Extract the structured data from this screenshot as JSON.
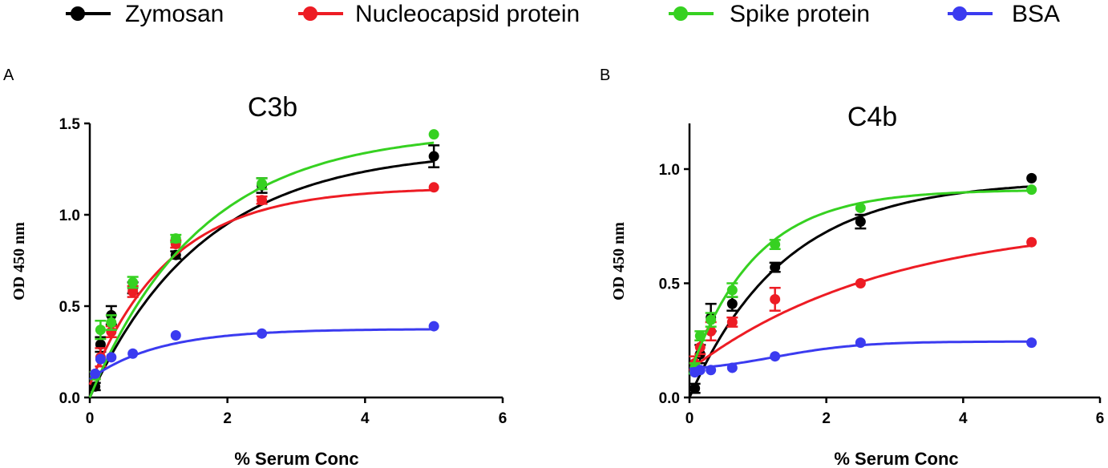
{
  "legend": [
    {
      "name": "Zymosan",
      "color": "#000000"
    },
    {
      "name": "Nucleocapsid protein",
      "color": "#ed1c24"
    },
    {
      "name": "Spike protein",
      "color": "#36d121"
    },
    {
      "name": "BSA",
      "color": "#3b3bf0"
    }
  ],
  "chart_data": [
    {
      "type": "scatter",
      "panel": "A",
      "title": "C3b",
      "xlabel": "% Serum Conc",
      "ylabel": "OD 450 nm",
      "xlim": [
        0,
        6
      ],
      "ylim": [
        0,
        1.5
      ],
      "xticks": [
        0,
        2,
        4,
        6
      ],
      "yticks": [
        0.0,
        0.5,
        1.0,
        1.5
      ],
      "x": [
        0.078,
        0.156,
        0.3125,
        0.625,
        1.25,
        2.5,
        5.0
      ],
      "series": [
        {
          "name": "Zymosan",
          "color": "#000000",
          "values": [
            0.06,
            0.29,
            0.45,
            0.6,
            0.78,
            1.16,
            1.32
          ],
          "err": [
            0.02,
            0.04,
            0.05,
            0.03,
            0.02,
            0.04,
            0.06
          ],
          "fit": {
            "base": 0.0,
            "top": 1.36,
            "k": 0.6
          }
        },
        {
          "name": "Nucleocapsid protein",
          "color": "#ed1c24",
          "values": [
            0.12,
            0.22,
            0.36,
            0.58,
            0.84,
            1.08,
            1.15
          ],
          "err": [
            0.02,
            0.05,
            0.03,
            0.03,
            0.02,
            0.02,
            0.01
          ],
          "fit": {
            "base": 0.07,
            "top": 1.15,
            "k": 0.86
          }
        },
        {
          "name": "Spike protein",
          "color": "#36d121",
          "values": [
            0.12,
            0.37,
            0.41,
            0.63,
            0.87,
            1.17,
            1.44
          ],
          "err": [
            0.02,
            0.05,
            0.04,
            0.03,
            0.02,
            0.03,
            0.01
          ],
          "fit": {
            "base": 0.0,
            "top": 1.46,
            "k": 0.62
          }
        },
        {
          "name": "BSA",
          "color": "#3b3bf0",
          "values": [
            0.13,
            0.21,
            0.22,
            0.24,
            0.34,
            0.35,
            0.39
          ],
          "err": [
            0.01,
            0.01,
            0.01,
            0.01,
            0.01,
            0.01,
            0.01
          ],
          "fit": {
            "base": 0.1,
            "top": 0.375,
            "k": 1.0
          }
        }
      ]
    },
    {
      "type": "scatter",
      "panel": "B",
      "title": "C4b",
      "xlabel": "% Serum Conc",
      "ylabel": "OD 450 nm",
      "xlim": [
        0,
        6
      ],
      "ylim": [
        0,
        1.2
      ],
      "xticks": [
        0,
        2,
        4,
        6
      ],
      "yticks": [
        0.0,
        0.5,
        1.0
      ],
      "x": [
        0.078,
        0.156,
        0.3125,
        0.625,
        1.25,
        2.5,
        5.0
      ],
      "series": [
        {
          "name": "Zymosan",
          "color": "#000000",
          "values": [
            0.04,
            0.19,
            0.35,
            0.41,
            0.57,
            0.77,
            0.96
          ],
          "err": [
            0.02,
            0.04,
            0.06,
            0.03,
            0.02,
            0.03,
            0.01
          ],
          "fit": {
            "base": 0.0,
            "top": 0.95,
            "k": 0.72
          }
        },
        {
          "name": "Nucleocapsid protein",
          "color": "#ed1c24",
          "values": [
            0.15,
            0.22,
            0.29,
            0.33,
            0.43,
            0.5,
            0.68
          ],
          "err": [
            0.03,
            0.03,
            0.04,
            0.02,
            0.05,
            0.01,
            0.01
          ],
          "fit": {
            "base": 0.12,
            "top": 0.78,
            "k": 0.35
          }
        },
        {
          "name": "Spike protein",
          "color": "#36d121",
          "values": [
            0.13,
            0.27,
            0.34,
            0.47,
            0.67,
            0.83,
            0.91
          ],
          "err": [
            0.02,
            0.02,
            0.03,
            0.03,
            0.02,
            0.01,
            0.01
          ],
          "fit": {
            "base": 0.1,
            "top": 0.91,
            "k": 1.05
          }
        },
        {
          "name": "BSA",
          "color": "#3b3bf0",
          "values": [
            0.11,
            0.12,
            0.12,
            0.13,
            0.18,
            0.24,
            0.24
          ],
          "err": [
            0.01,
            0.01,
            0.01,
            0.01,
            0.01,
            0.01,
            0.01
          ],
          "fit": {
            "base": 0.11,
            "top": 0.245,
            "k": 1.6,
            "x0": 1.25,
            "logistic": true
          }
        }
      ]
    }
  ]
}
